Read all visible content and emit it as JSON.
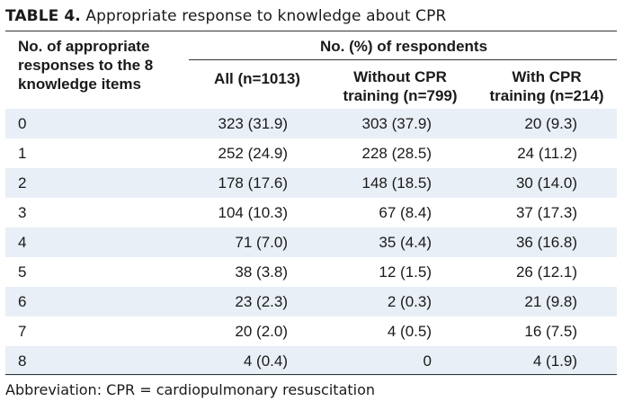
{
  "caption": {
    "label": "TABLE 4.",
    "title": "Appropriate response to knowledge about CPR"
  },
  "header": {
    "stub_line1": "No. of appropriate",
    "stub_line2": "responses to the 8",
    "stub_line3": "knowledge items",
    "group": "No. (%) of respondents",
    "col1": "All (n=1013)",
    "col2_line1": "Without CPR",
    "col2_line2": "training (n=799)",
    "col3_line1": "With CPR",
    "col3_line2": "training (n=214)"
  },
  "rows": [
    {
      "count": "0",
      "all": "323 (31.9)",
      "without": "303 (37.9)",
      "with": "20 (9.3)"
    },
    {
      "count": "1",
      "all": "252 (24.9)",
      "without": "228 (28.5)",
      "with": "24 (11.2)"
    },
    {
      "count": "2",
      "all": "178 (17.6)",
      "without": "148 (18.5)",
      "with": "30 (14.0)"
    },
    {
      "count": "3",
      "all": "104 (10.3)",
      "without": "67 (8.4)",
      "with": "37 (17.3)"
    },
    {
      "count": "4",
      "all": "71 (7.0)",
      "without": "35 (4.4)",
      "with": "36 (16.8)"
    },
    {
      "count": "5",
      "all": "38 (3.8)",
      "without": "12 (1.5)",
      "with": "26 (12.1)"
    },
    {
      "count": "6",
      "all": "23 (2.3)",
      "without": "2 (0.3)",
      "with": "21 (9.8)"
    },
    {
      "count": "7",
      "all": "20 (2.0)",
      "without": "4 (0.5)",
      "with": "16 (7.5)"
    },
    {
      "count": "8",
      "all": "4 (0.4)",
      "without": "0",
      "with": "4 (1.9)"
    }
  ],
  "footnote": "Abbreviation: CPR = cardiopulmonary resuscitation",
  "colors": {
    "shade": "#e9eff6",
    "rule": "#333333"
  }
}
